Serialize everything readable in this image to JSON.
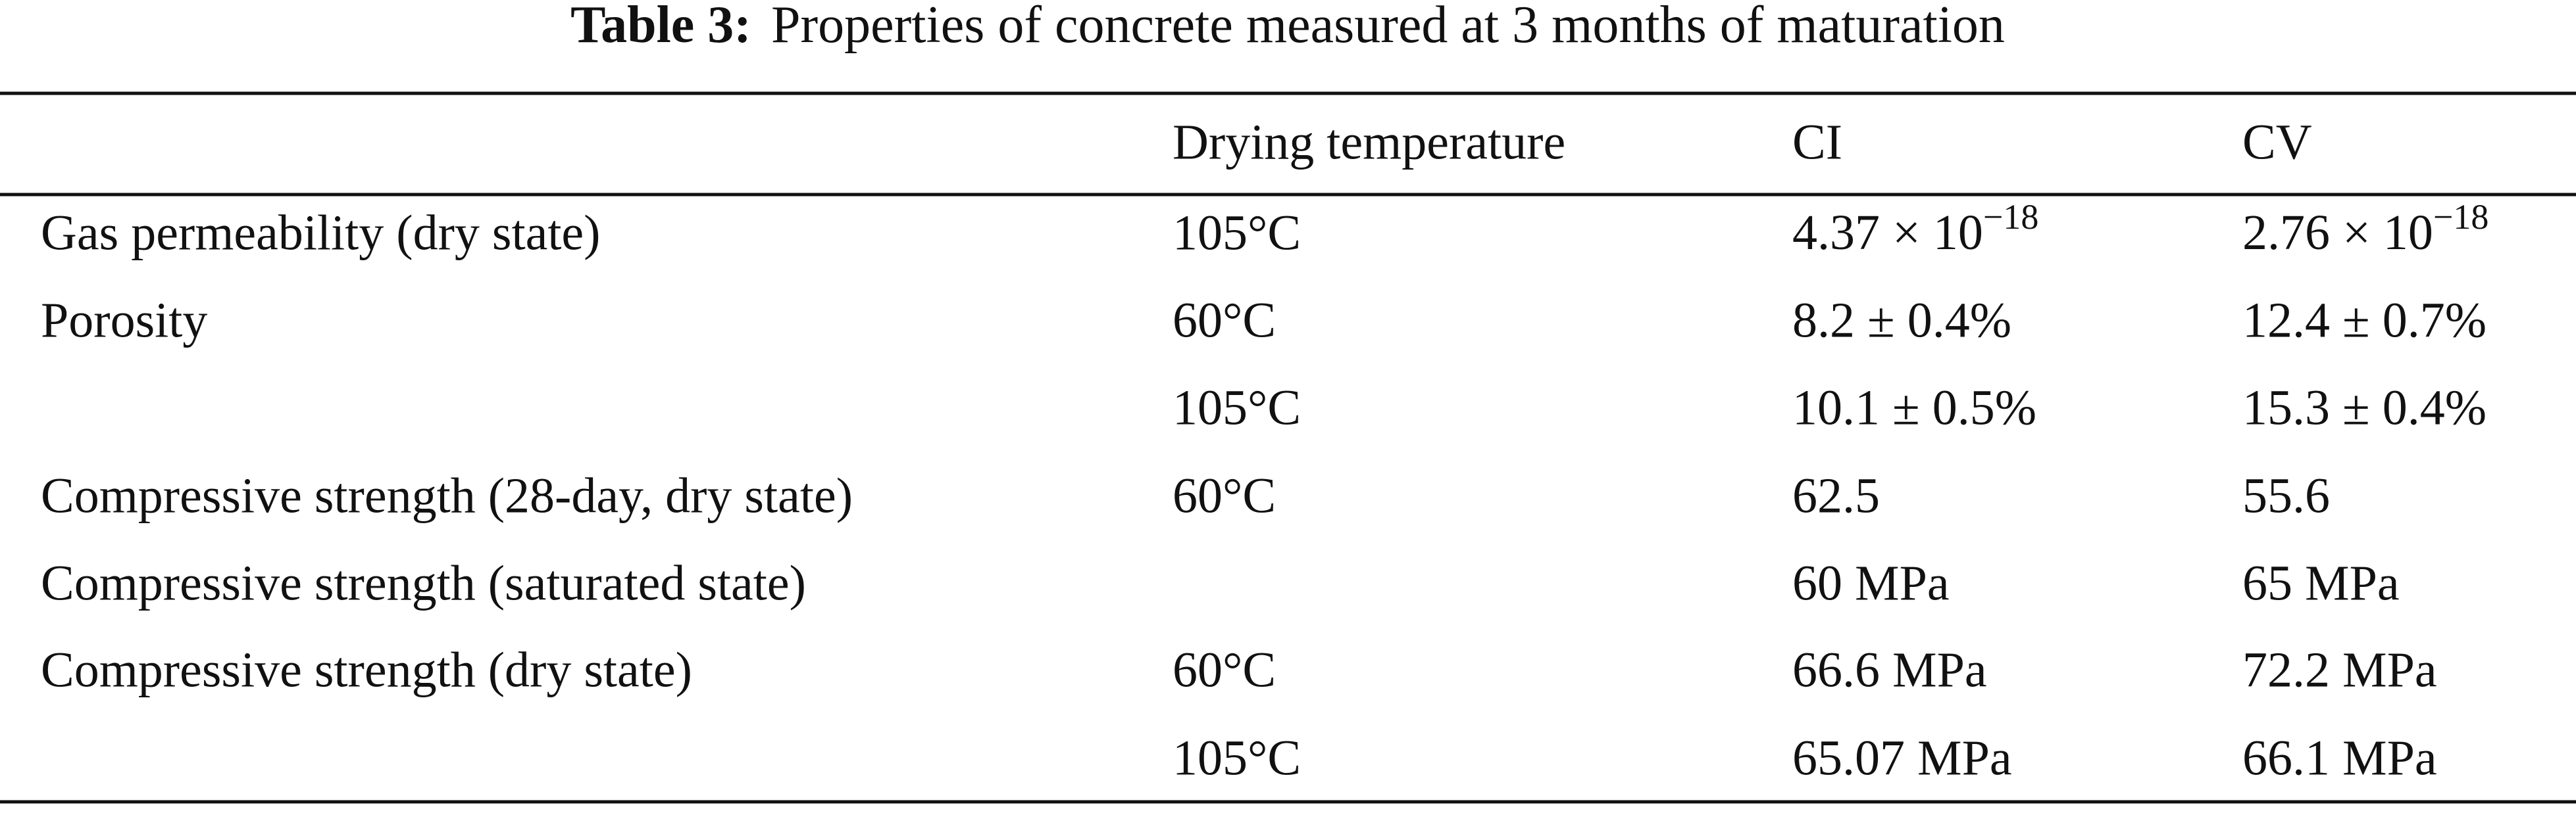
{
  "table": {
    "caption": {
      "label": "Table 3:",
      "text": "Properties of concrete measured at 3 months of maturation"
    },
    "header": [
      null,
      "Drying temperature",
      "CI",
      "CV"
    ],
    "rows": [
      [
        "Gas permeability (dry state)",
        "105°C",
        {
          "base": "4.37 × 10",
          "sup": "−18"
        },
        {
          "base": "2.76 × 10",
          "sup": "−18"
        }
      ],
      [
        "Porosity",
        "60°C",
        "8.2 ± 0.4%",
        "12.4 ± 0.7%"
      ],
      [
        null,
        "105°C",
        "10.1 ± 0.5%",
        "15.3 ± 0.4%"
      ],
      [
        "Compressive strength (28-day, dry state)",
        "60°C",
        "62.5",
        "55.6"
      ],
      [
        "Compressive strength (saturated state)",
        null,
        "60 MPa",
        "65 MPa"
      ],
      [
        "Compressive strength (dry state)",
        "60°C",
        "66.6 MPa",
        "72.2 MPa"
      ],
      [
        null,
        "105°C",
        "65.07 MPa",
        "66.1 MPa"
      ]
    ]
  }
}
